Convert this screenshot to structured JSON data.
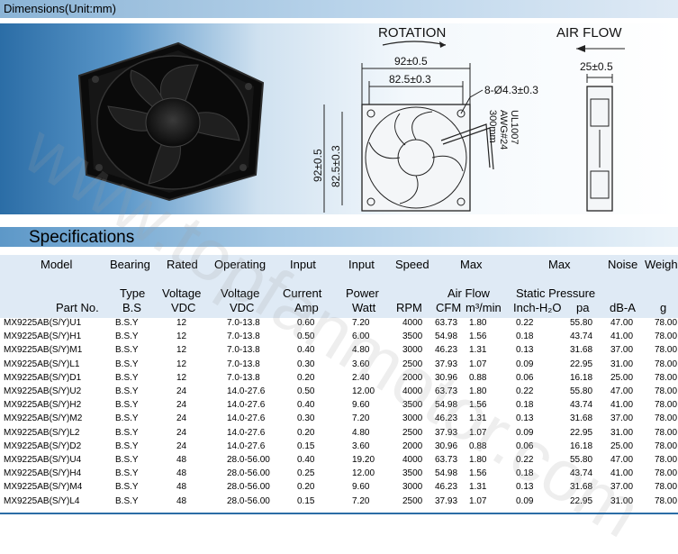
{
  "header": {
    "title": "Dimensions(Unit:mm)"
  },
  "drawing": {
    "rotation": "ROTATION",
    "airflow": "AIR FLOW",
    "dim_outer": "92±0.5",
    "dim_inner": "82.5±0.3",
    "hole": "8-Ø4.3±0.3",
    "depth": "25±0.5",
    "cable": [
      "UL1007",
      "AWG#24",
      "300mm"
    ],
    "v_outer": "92±0.5",
    "v_inner": "82.5±0.3"
  },
  "specs": {
    "title": "Specifications",
    "head1": [
      "Model",
      "Bearing",
      "Rated",
      "Operating",
      "Input",
      "Input",
      "Speed",
      "Max",
      "Max",
      "Noise",
      "Weigh"
    ],
    "head2": [
      "",
      "Type",
      "Voltage",
      "Voltage",
      "Current",
      "Power",
      "",
      "Air Flow",
      "Static Pressure",
      "",
      ""
    ],
    "head3": [
      "Part No.",
      "B.S",
      "VDC",
      "VDC",
      "Amp",
      "Watt",
      "RPM",
      "CFM",
      "m³/min",
      "Inch-H₂O",
      "pa",
      "dB-A",
      "g"
    ],
    "rows": [
      [
        "MX9225AB(S/Y)U1",
        "B.S.Y",
        "12",
        "7.0-13.8",
        "0.60",
        "7.20",
        "4000",
        "63.73",
        "1.80",
        "0.22",
        "55.80",
        "47.00",
        "78.00"
      ],
      [
        "MX9225AB(S/Y)H1",
        "B.S.Y",
        "12",
        "7.0-13.8",
        "0.50",
        "6.00",
        "3500",
        "54.98",
        "1.56",
        "0.18",
        "43.74",
        "41.00",
        "78.00"
      ],
      [
        "MX9225AB(S/Y)M1",
        "B.S.Y",
        "12",
        "7.0-13.8",
        "0.40",
        "4.80",
        "3000",
        "46.23",
        "1.31",
        "0.13",
        "31.68",
        "37.00",
        "78.00"
      ],
      [
        "MX9225AB(S/Y)L1",
        "B.S.Y",
        "12",
        "7.0-13.8",
        "0.30",
        "3.60",
        "2500",
        "37.93",
        "1.07",
        "0.09",
        "22.95",
        "31.00",
        "78.00"
      ],
      [
        "MX9225AB(S/Y)D1",
        "B.S.Y",
        "12",
        "7.0-13.8",
        "0.20",
        "2.40",
        "2000",
        "30.96",
        "0.88",
        "0.06",
        "16.18",
        "25.00",
        "78.00"
      ],
      [
        "MX9225AB(S/Y)U2",
        "B.S.Y",
        "24",
        "14.0-27.6",
        "0.50",
        "12.00",
        "4000",
        "63.73",
        "1.80",
        "0.22",
        "55.80",
        "47.00",
        "78.00"
      ],
      [
        "MX9225AB(S/Y)H2",
        "B.S.Y",
        "24",
        "14.0-27.6",
        "0.40",
        "9.60",
        "3500",
        "54.98",
        "1.56",
        "0.18",
        "43.74",
        "41.00",
        "78.00"
      ],
      [
        "MX9225AB(S/Y)M2",
        "B.S.Y",
        "24",
        "14.0-27.6",
        "0.30",
        "7.20",
        "3000",
        "46.23",
        "1.31",
        "0.13",
        "31.68",
        "37.00",
        "78.00"
      ],
      [
        "MX9225AB(S/Y)L2",
        "B.S.Y",
        "24",
        "14.0-27.6",
        "0.20",
        "4.80",
        "2500",
        "37.93",
        "1.07",
        "0.09",
        "22.95",
        "31.00",
        "78.00"
      ],
      [
        "MX9225AB(S/Y)D2",
        "B.S.Y",
        "24",
        "14.0-27.6",
        "0.15",
        "3.60",
        "2000",
        "30.96",
        "0.88",
        "0.06",
        "16.18",
        "25.00",
        "78.00"
      ],
      [
        "MX9225AB(S/Y)U4",
        "B.S.Y",
        "48",
        "28.0-56.00",
        "0.40",
        "19.20",
        "4000",
        "63.73",
        "1.80",
        "0.22",
        "55.80",
        "47.00",
        "78.00"
      ],
      [
        "MX9225AB(S/Y)H4",
        "B.S.Y",
        "48",
        "28.0-56.00",
        "0.25",
        "12.00",
        "3500",
        "54.98",
        "1.56",
        "0.18",
        "43.74",
        "41.00",
        "78.00"
      ],
      [
        "MX9225AB(S/Y)M4",
        "B.S.Y",
        "48",
        "28.0-56.00",
        "0.20",
        "9.60",
        "3000",
        "46.23",
        "1.31",
        "0.13",
        "31.68",
        "37.00",
        "78.00"
      ],
      [
        "MX9225AB(S/Y)L4",
        "B.S.Y",
        "48",
        "28.0-56.00",
        "0.15",
        "7.20",
        "2500",
        "37.93",
        "1.07",
        "0.09",
        "22.95",
        "31.00",
        "78.00"
      ]
    ]
  }
}
